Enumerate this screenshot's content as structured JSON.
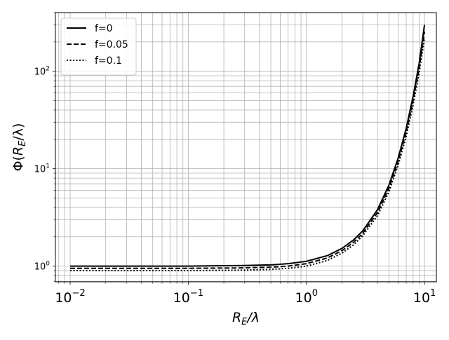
{
  "chart_data": {
    "type": "line",
    "xlabel": {
      "base": "R",
      "sub": "E",
      "tail": "/λ"
    },
    "ylabel": {
      "head": "Φ(",
      "base": "R",
      "sub": "E",
      "tail": "/λ)"
    },
    "x_scale": "log",
    "y_scale": "log",
    "xlim": [
      0.0075,
      12.6
    ],
    "ylim": [
      0.69,
      400
    ],
    "grid": true,
    "legend_position": "top-left",
    "x_ticks": [
      {
        "value": 0.01,
        "base": "10",
        "exp": "−2"
      },
      {
        "value": 0.1,
        "base": "10",
        "exp": "−1"
      },
      {
        "value": 1,
        "base": "10",
        "exp": "0"
      },
      {
        "value": 10,
        "base": "10",
        "exp": "1"
      }
    ],
    "y_ticks": [
      {
        "value": 1,
        "base": "10",
        "exp": "0"
      },
      {
        "value": 10,
        "base": "10",
        "exp": "1"
      },
      {
        "value": 100,
        "base": "10",
        "exp": "2"
      }
    ],
    "x": [
      0.01,
      0.02,
      0.05,
      0.1,
      0.2,
      0.3,
      0.5,
      0.7,
      1,
      1.5,
      2,
      2.5,
      3,
      4,
      5,
      6,
      7,
      8,
      9,
      10
    ],
    "series": [
      {
        "name": "f=0",
        "dash": "solid",
        "color": "#000000",
        "values": [
          1.0,
          1.0,
          1.0,
          1.0,
          1.01,
          1.015,
          1.03,
          1.06,
          1.12,
          1.28,
          1.52,
          1.85,
          2.3,
          3.8,
          6.8,
          13,
          26,
          55,
          120,
          300
        ]
      },
      {
        "name": "f=0.05",
        "dash": "dashed",
        "color": "#000000",
        "values": [
          0.95,
          0.95,
          0.95,
          0.95,
          0.955,
          0.96,
          0.975,
          1.0,
          1.06,
          1.21,
          1.44,
          1.75,
          2.17,
          3.55,
          6.3,
          12,
          24,
          50,
          108,
          255
        ]
      },
      {
        "name": "f=0.1",
        "dash": "dotted",
        "color": "#000000",
        "values": [
          0.9,
          0.9,
          0.9,
          0.9,
          0.905,
          0.91,
          0.925,
          0.95,
          1.0,
          1.14,
          1.36,
          1.65,
          2.05,
          3.3,
          5.8,
          11,
          21.5,
          45,
          96,
          220
        ]
      }
    ]
  }
}
